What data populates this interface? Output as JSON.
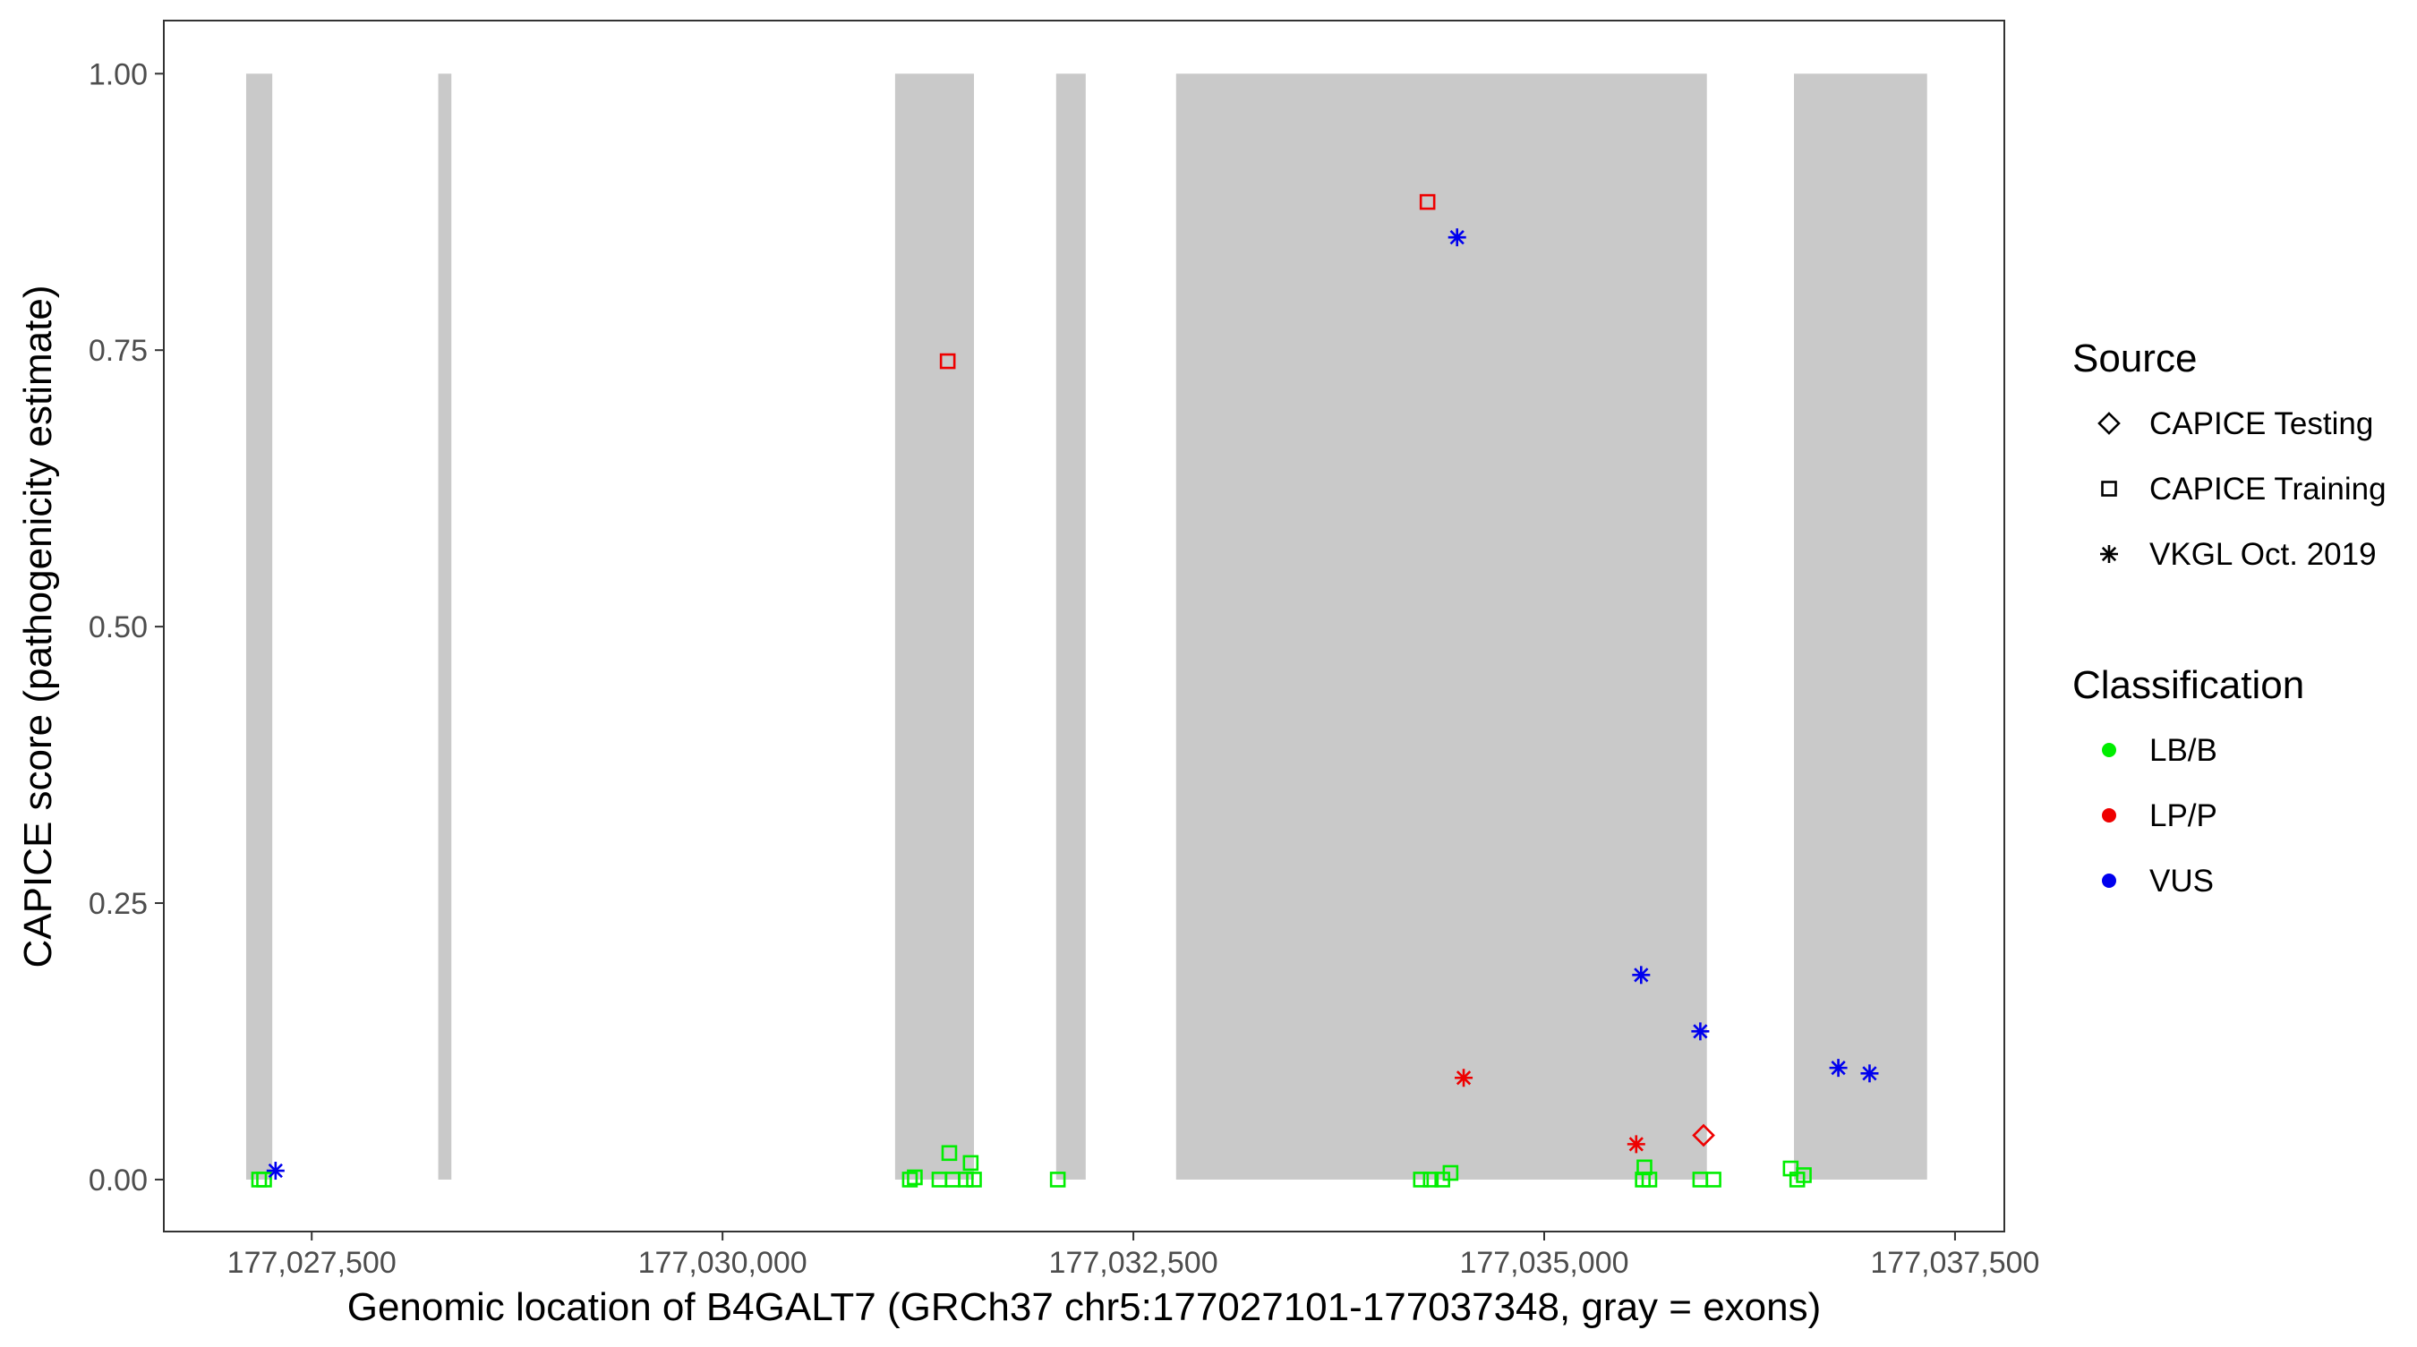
{
  "chart_data": {
    "type": "scatter",
    "title": "",
    "xlabel": "Genomic location of B4GALT7 (GRCh37 chr5:177027101-177037348, gray = exons)",
    "ylabel": "CAPICE score (pathogenicity estimate)",
    "xlim": [
      177026600,
      177037800
    ],
    "ylim": [
      -0.047,
      1.048
    ],
    "x_ticks": [
      177027500,
      177030000,
      177032500,
      177035000,
      177037500
    ],
    "x_tick_labels": [
      "177,027,500",
      "177,030,000",
      "177,032,500",
      "177,035,000",
      "177,037,500"
    ],
    "y_ticks": [
      0,
      0.25,
      0.5,
      0.75,
      1.0
    ],
    "y_tick_labels": [
      "0.00",
      "0.25",
      "0.50",
      "0.75",
      "1.00"
    ],
    "grid": false,
    "exons": [
      [
        177027101,
        177027260
      ],
      [
        177028270,
        177028350
      ],
      [
        177031050,
        177031530
      ],
      [
        177032030,
        177032210
      ],
      [
        177032760,
        177035990
      ],
      [
        177036520,
        177037330
      ]
    ],
    "exon_color": "#c9c9c9",
    "legend_position": "right",
    "legend": {
      "source": {
        "title": "Source",
        "items": [
          {
            "label": "CAPICE Testing",
            "shape": "diamond"
          },
          {
            "label": "CAPICE Training",
            "shape": "square"
          },
          {
            "label": "VKGL Oct. 2019",
            "shape": "asterisk"
          }
        ]
      },
      "classification": {
        "title": "Classification",
        "items": [
          {
            "label": "LB/B",
            "color": "#00ee00"
          },
          {
            "label": "LP/P",
            "color": "#ee0000"
          },
          {
            "label": "VUS",
            "color": "#0000ee"
          }
        ]
      }
    },
    "colors": {
      "LB/B": "#00ee00",
      "LP/P": "#ee0000",
      "VUS": "#0000ee"
    },
    "points": [
      {
        "x": 177027180,
        "y": 0.0,
        "source": "CAPICE Training",
        "class": "LB/B"
      },
      {
        "x": 177027210,
        "y": 0.0,
        "source": "CAPICE Training",
        "class": "LB/B"
      },
      {
        "x": 177027280,
        "y": 0.008,
        "source": "VKGL Oct. 2019",
        "class": "VUS"
      },
      {
        "x": 177031140,
        "y": 0.0,
        "source": "CAPICE Training",
        "class": "LB/B"
      },
      {
        "x": 177031170,
        "y": 0.002,
        "source": "CAPICE Training",
        "class": "LB/B"
      },
      {
        "x": 177031320,
        "y": 0.0,
        "source": "CAPICE Training",
        "class": "LB/B"
      },
      {
        "x": 177031380,
        "y": 0.024,
        "source": "CAPICE Training",
        "class": "LB/B"
      },
      {
        "x": 177031400,
        "y": 0.0,
        "source": "CAPICE Training",
        "class": "LB/B"
      },
      {
        "x": 177031480,
        "y": 0.0,
        "source": "CAPICE Training",
        "class": "LB/B"
      },
      {
        "x": 177031510,
        "y": 0.015,
        "source": "CAPICE Training",
        "class": "LB/B"
      },
      {
        "x": 177031530,
        "y": 0.0,
        "source": "CAPICE Training",
        "class": "LB/B"
      },
      {
        "x": 177031370,
        "y": 0.74,
        "source": "CAPICE Training",
        "class": "LP/P"
      },
      {
        "x": 177032040,
        "y": 0.0,
        "source": "CAPICE Training",
        "class": "LB/B"
      },
      {
        "x": 177034250,
        "y": 0.0,
        "source": "CAPICE Training",
        "class": "LB/B"
      },
      {
        "x": 177034310,
        "y": 0.0,
        "source": "CAPICE Training",
        "class": "LB/B"
      },
      {
        "x": 177034380,
        "y": 0.0,
        "source": "CAPICE Training",
        "class": "LB/B"
      },
      {
        "x": 177034430,
        "y": 0.006,
        "source": "CAPICE Training",
        "class": "LB/B"
      },
      {
        "x": 177034290,
        "y": 0.884,
        "source": "CAPICE Training",
        "class": "LP/P"
      },
      {
        "x": 177034470,
        "y": 0.852,
        "source": "VKGL Oct. 2019",
        "class": "VUS"
      },
      {
        "x": 177034510,
        "y": 0.092,
        "source": "VKGL Oct. 2019",
        "class": "LP/P"
      },
      {
        "x": 177035590,
        "y": 0.185,
        "source": "VKGL Oct. 2019",
        "class": "VUS"
      },
      {
        "x": 177035560,
        "y": 0.032,
        "source": "VKGL Oct. 2019",
        "class": "LP/P"
      },
      {
        "x": 177035600,
        "y": 0.0,
        "source": "CAPICE Training",
        "class": "LB/B"
      },
      {
        "x": 177035610,
        "y": 0.011,
        "source": "CAPICE Training",
        "class": "LB/B"
      },
      {
        "x": 177035640,
        "y": 0.0,
        "source": "CAPICE Training",
        "class": "LB/B"
      },
      {
        "x": 177035950,
        "y": 0.134,
        "source": "VKGL Oct. 2019",
        "class": "VUS"
      },
      {
        "x": 177035970,
        "y": 0.04,
        "source": "CAPICE Testing",
        "class": "LP/P"
      },
      {
        "x": 177035950,
        "y": 0.0,
        "source": "CAPICE Training",
        "class": "LB/B"
      },
      {
        "x": 177036030,
        "y": 0.0,
        "source": "CAPICE Training",
        "class": "LB/B"
      },
      {
        "x": 177036500,
        "y": 0.01,
        "source": "CAPICE Training",
        "class": "LB/B"
      },
      {
        "x": 177036540,
        "y": 0.0,
        "source": "CAPICE Training",
        "class": "LB/B"
      },
      {
        "x": 177036580,
        "y": 0.004,
        "source": "CAPICE Training",
        "class": "LB/B"
      },
      {
        "x": 177036790,
        "y": 0.101,
        "source": "VKGL Oct. 2019",
        "class": "VUS"
      },
      {
        "x": 177036980,
        "y": 0.096,
        "source": "VKGL Oct. 2019",
        "class": "VUS"
      }
    ]
  }
}
